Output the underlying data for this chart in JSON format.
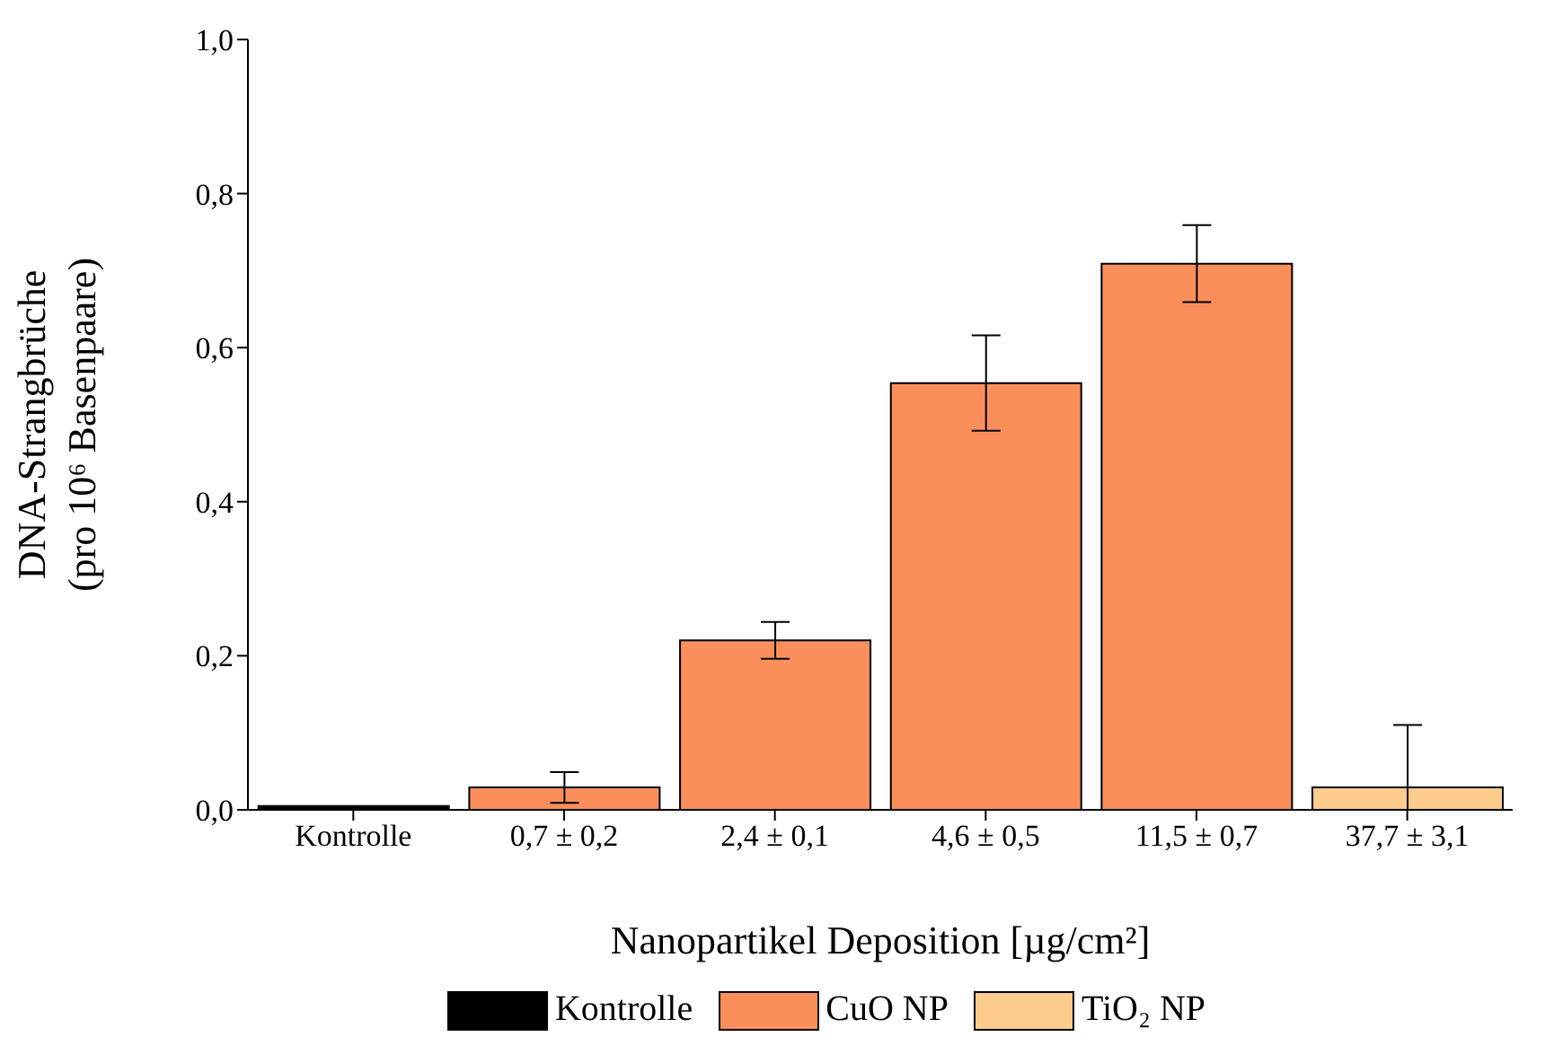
{
  "chart_data": {
    "type": "bar",
    "categories": [
      "Kontrolle",
      "0,7 ± 0,2",
      "2,4 ± 0,1",
      "4,6 ± 0,5",
      "11,5 ± 0,7",
      "37,7 ± 3,1"
    ],
    "xlabel": "Nanopartikel Deposition [µg/cm²]",
    "ylabel": "DNA-Strangbrüche\n(pro 10⁶ Basenpaare)",
    "ylim": [
      0,
      1
    ],
    "yticks": [
      {
        "value": 0,
        "label": "0,0"
      },
      {
        "value": 0.2,
        "label": "0,2"
      },
      {
        "value": 0.4,
        "label": "0,4"
      },
      {
        "value": 0.6,
        "label": "0,6"
      },
      {
        "value": 0.8,
        "label": "0,8"
      },
      {
        "value": 1,
        "label": "1,0"
      }
    ],
    "legend": "bottom",
    "series": [
      {
        "name": "Kontrolle",
        "color": "#000000",
        "values": [
          0.005,
          null,
          null,
          null,
          null,
          null
        ]
      },
      {
        "name": "CuO NP",
        "color": "#fb8f5c",
        "values": [
          null,
          0.029,
          0.22,
          0.554,
          0.709,
          null
        ],
        "errors": [
          null,
          0.02,
          0.024,
          0.062,
          0.05,
          null
        ]
      },
      {
        "name": "TiO₂ NP",
        "color": "#fdcb8c",
        "values": [
          null,
          null,
          null,
          null,
          null,
          0.029
        ],
        "errors": [
          null,
          null,
          null,
          null,
          null,
          [
            0,
            0.11
          ]
        ]
      }
    ]
  }
}
